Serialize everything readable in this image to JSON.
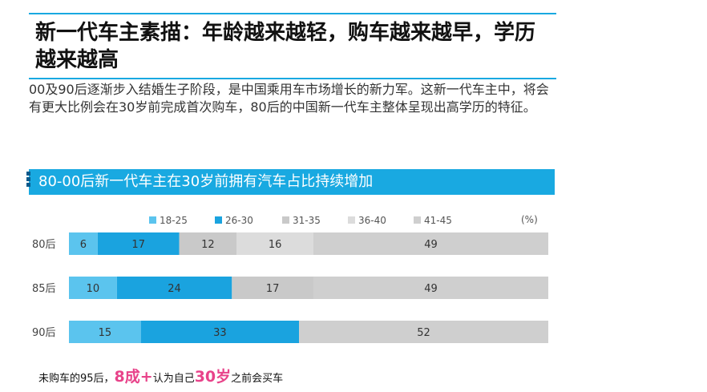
{
  "heading": {
    "title": "新一代车主素描：年龄越来越轻，购车越来越早，学历越来越高",
    "description": "00及90后逐渐步入结婚生子阶段，是中国乘用车市场增长的新力军。这新一代车主中，将会有更大比例会在30岁前完成首次购车，80后的中国新一代车主整体呈现出高学历的特征。"
  },
  "chart_data": {
    "type": "bar",
    "stacked": true,
    "orientation": "horizontal",
    "title": "80-00后新一代车主在30岁前拥有汽车占比持续增加",
    "unit_label": "(%)",
    "categories": [
      "80后",
      "85后",
      "90后"
    ],
    "series": [
      {
        "name": "18-25",
        "color": "#5bc4ee",
        "values": [
          6,
          10,
          15
        ]
      },
      {
        "name": "26-30",
        "color": "#1aa3df",
        "values": [
          17,
          24,
          33
        ]
      },
      {
        "name": "31-35",
        "color": "#c9c9c9",
        "values": [
          12,
          17,
          0
        ]
      },
      {
        "name": "36-40",
        "color": "#dcdcdc",
        "values": [
          16,
          0,
          0
        ]
      },
      {
        "name": "41-45",
        "color": "#cfcfcf",
        "values": [
          49,
          49,
          52
        ]
      }
    ],
    "xlim": [
      0,
      100
    ],
    "grid": false,
    "legend_position": "top"
  },
  "footnote": {
    "prefix": "未购车的95后，",
    "highlight1": "8成+",
    "middle": "认为自己",
    "highlight2": "30岁",
    "suffix": "之前会买车"
  }
}
